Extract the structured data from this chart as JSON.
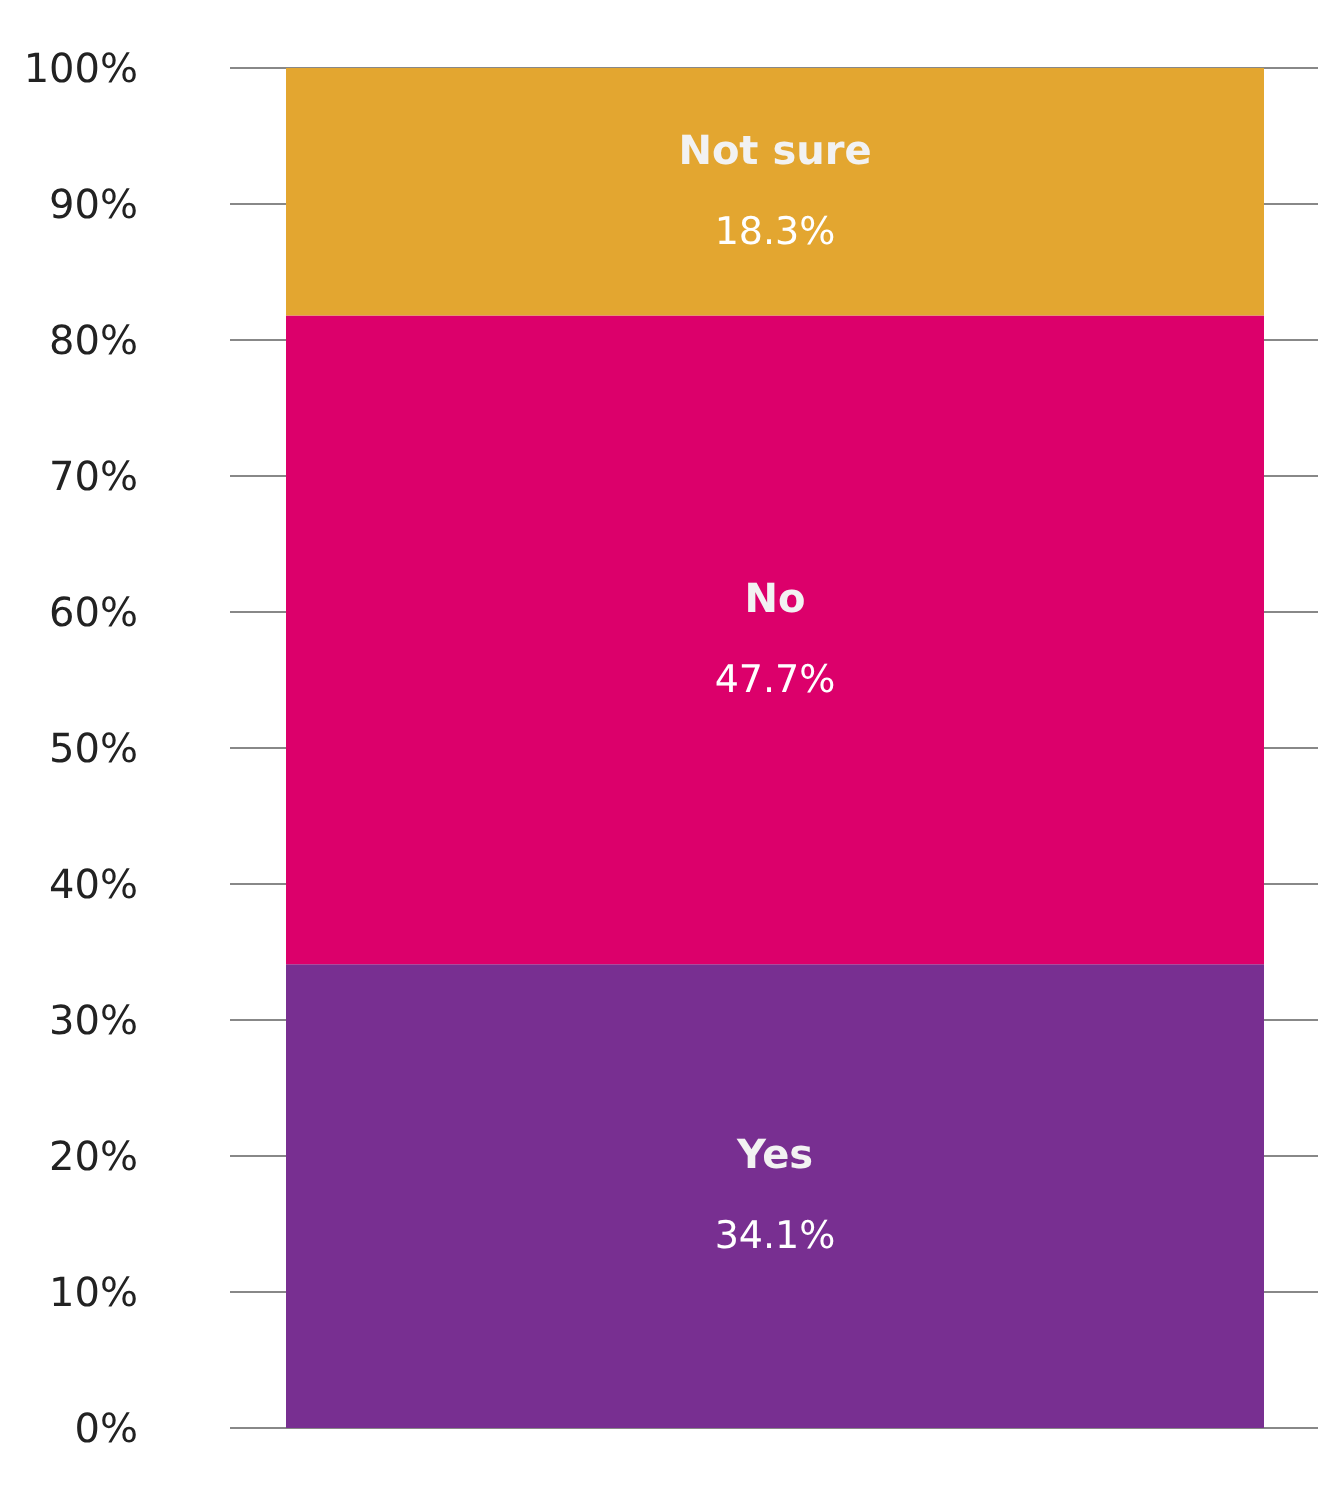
{
  "chart_data": {
    "type": "bar",
    "stacked": true,
    "categories": [
      null
    ],
    "series": [
      {
        "name": "Yes",
        "color": "#782f91",
        "values": [
          34.1
        ],
        "value_labels": [
          "34.1%"
        ]
      },
      {
        "name": "No",
        "color": "#dc006b",
        "values": [
          47.7
        ],
        "value_labels": [
          "47.7%"
        ]
      },
      {
        "name": "Not sure",
        "color": "#e3a630",
        "values": [
          18.3
        ],
        "value_labels": [
          "18.3%"
        ]
      }
    ],
    "ylim": [
      0,
      100
    ],
    "yticks": [
      {
        "value": 0,
        "label": "0%"
      },
      {
        "value": 10,
        "label": "10%"
      },
      {
        "value": 20,
        "label": "20%"
      },
      {
        "value": 30,
        "label": "30%"
      },
      {
        "value": 40,
        "label": "40%"
      },
      {
        "value": 50,
        "label": "50%"
      },
      {
        "value": 60,
        "label": "60%"
      },
      {
        "value": 70,
        "label": "70%"
      },
      {
        "value": 80,
        "label": "80%"
      },
      {
        "value": 90,
        "label": "90%"
      },
      {
        "value": 100,
        "label": "100%"
      }
    ],
    "grid": "y",
    "legend": false
  }
}
